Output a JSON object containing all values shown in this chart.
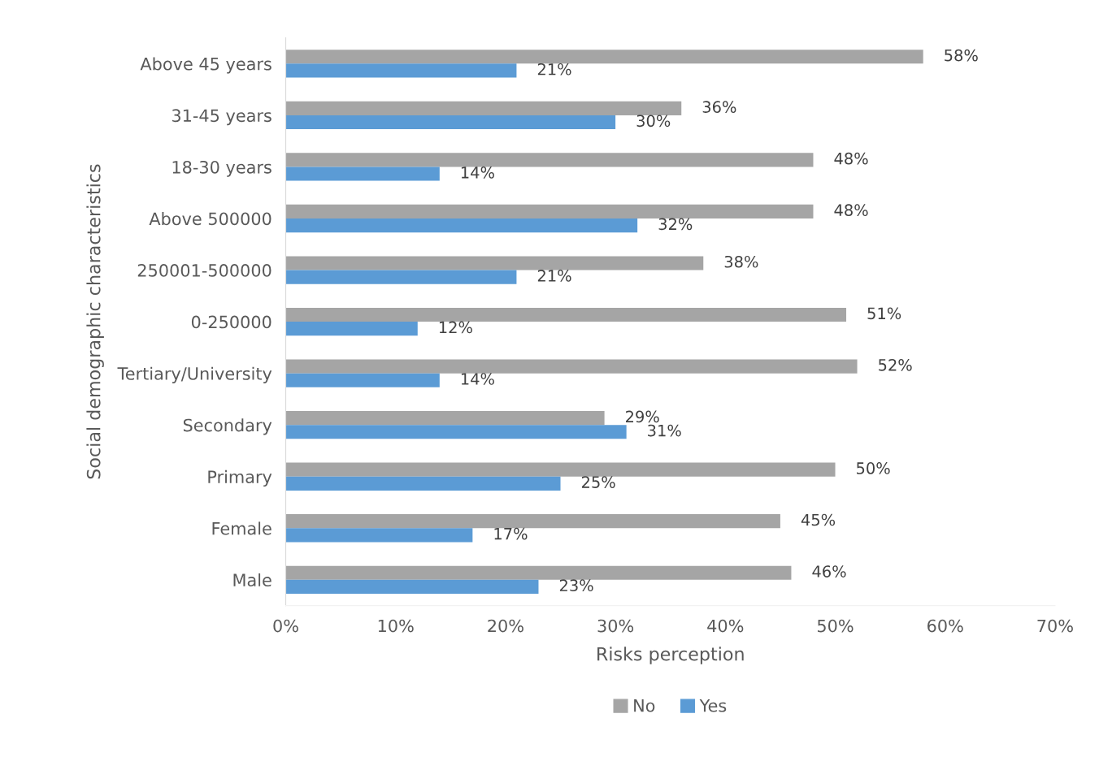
{
  "chart_data": {
    "type": "bar",
    "orientation": "horizontal",
    "xlabel": "Risks perception",
    "ylabel": "Social demographic characteristics",
    "categories": [
      "Above 45 years",
      "31-45 years",
      "18-30 years",
      "Above 500000",
      "250001-500000",
      "0-250000",
      "Tertiary/University",
      "Secondary",
      "Primary",
      "Female",
      "Male"
    ],
    "series": [
      {
        "name": "No",
        "color": "#a5a5a5",
        "values": [
          58,
          36,
          48,
          48,
          38,
          51,
          52,
          29,
          50,
          45,
          46
        ],
        "value_labels": [
          "58%",
          "36%",
          "48%",
          "48%",
          "38%",
          "51%",
          "52%",
          "29%",
          "50%",
          "45%",
          "46%"
        ]
      },
      {
        "name": "Yes",
        "color": "#5b9bd5",
        "values": [
          21,
          30,
          14,
          32,
          21,
          12,
          14,
          31,
          25,
          17,
          23
        ],
        "value_labels": [
          "21%",
          "30%",
          "14%",
          "32%",
          "21%",
          "12%",
          "14%",
          "31%",
          "25%",
          "17%",
          "23%"
        ]
      }
    ],
    "xlim": [
      0,
      70
    ],
    "xticks": [
      {
        "value": 0,
        "label": "0%"
      },
      {
        "value": 10,
        "label": "10%"
      },
      {
        "value": 20,
        "label": "20%"
      },
      {
        "value": 30,
        "label": "30%"
      },
      {
        "value": 40,
        "label": "40%"
      },
      {
        "value": 50,
        "label": "50%"
      },
      {
        "value": 60,
        "label": "60%"
      },
      {
        "value": 70,
        "label": "70%"
      }
    ],
    "legend": "bottom",
    "grid": false
  }
}
